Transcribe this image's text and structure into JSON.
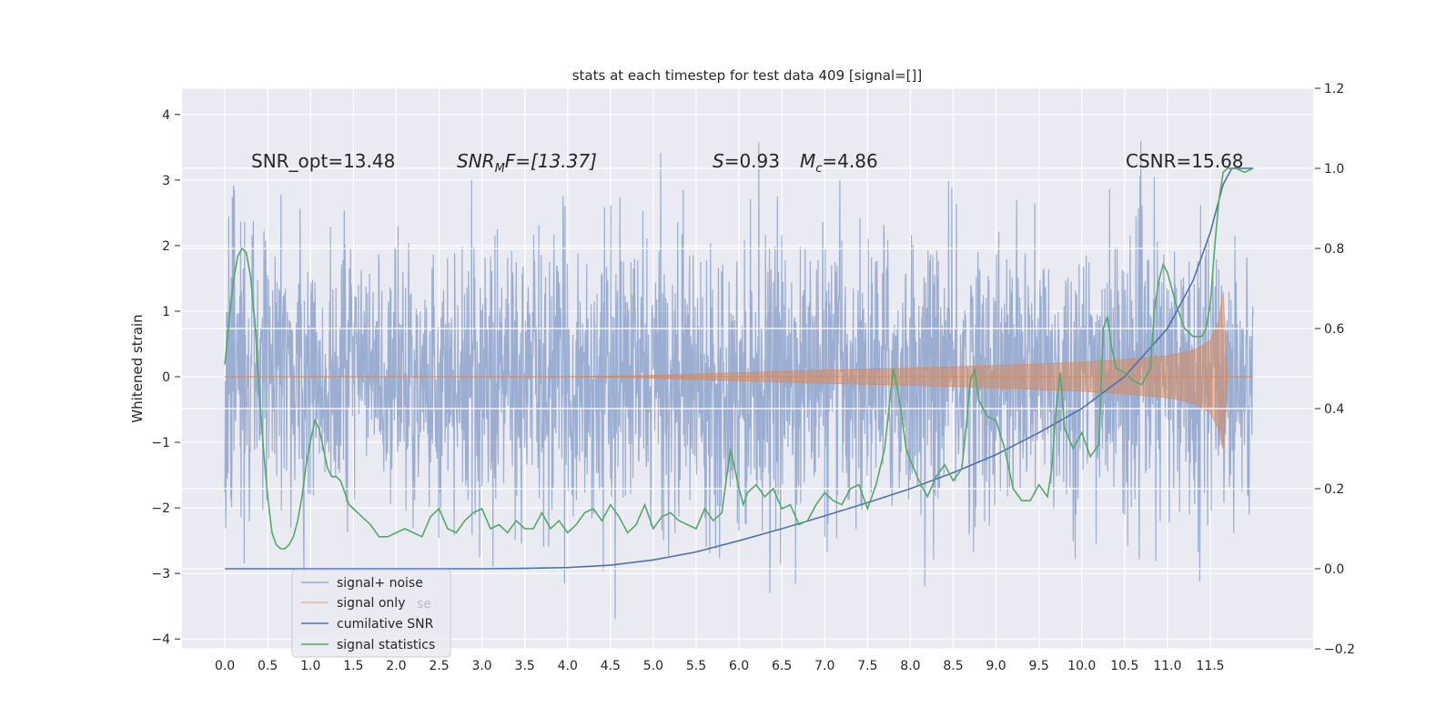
{
  "chart_data": {
    "type": "line",
    "title": "stats at each timestep for test data 409 [signal=[]]",
    "xlabel": "",
    "ylabel": "Whitened strain",
    "xlim": [
      -0.5,
      12.7
    ],
    "ylim": [
      -4.15,
      4.4
    ],
    "y2lim": [
      -0.2,
      1.2
    ],
    "grid": true,
    "x_ticks": [
      "0.0",
      "0.5",
      "1.0",
      "1.5",
      "2.0",
      "2.5",
      "3.0",
      "3.5",
      "4.0",
      "4.5",
      "5.0",
      "5.5",
      "6.0",
      "6.5",
      "7.0",
      "7.5",
      "8.0",
      "8.5",
      "9.0",
      "9.5",
      "10.0",
      "10.5",
      "11.0",
      "11.5"
    ],
    "y_ticks": [
      "4",
      "3",
      "2",
      "1",
      "0",
      "−1",
      "−2",
      "−3",
      "−4"
    ],
    "y2_ticks": [
      "1.2",
      "1.0",
      "0.8",
      "0.6",
      "0.4",
      "0.2",
      "0.0",
      "−0.2"
    ],
    "annotations": {
      "snr_opt": "SNR_opt=13.48",
      "snr_mf_name": "SNR",
      "snr_mf_sub": "M",
      "snr_mf_rest": "F=[13.37]",
      "s_name": "S",
      "s_value": "=0.93",
      "mc_name": "M",
      "mc_sub": "c",
      "mc_value": "=4.86",
      "csnr": "CSNR=15.68"
    },
    "legend": {
      "placement": "lower-left",
      "entries": [
        "signal+ noise",
        "signal only",
        "cumilative SNR",
        "signal statistics"
      ],
      "ghost_text": "se"
    },
    "series": [
      {
        "name": "signal+ noise",
        "axis": "left",
        "color": "#4c72b0",
        "description": "whitened strain noise spanning t=0 to 12.0, amplitude roughly ±2 with peaks to about 3.5 / -3.7",
        "x_range": [
          0.0,
          12.0
        ]
      },
      {
        "name": "signal only",
        "axis": "left",
        "color": "#dd8452",
        "description": "chirp envelope growing from ~0 near t=4 to about ±0.5 at t=11.5, peaking at +1.3 / -1.1 near merger t=11.65",
        "envelope_x": [
          0.0,
          2.0,
          4.0,
          5.0,
          6.0,
          7.0,
          8.0,
          9.0,
          10.0,
          10.5,
          11.0,
          11.3,
          11.5,
          11.6,
          11.65,
          11.7,
          12.0
        ],
        "envelope_upper": [
          0.0,
          0.0,
          0.0,
          0.02,
          0.06,
          0.1,
          0.13,
          0.17,
          0.22,
          0.26,
          0.32,
          0.4,
          0.55,
          0.85,
          1.3,
          0.0,
          0.0
        ],
        "envelope_lower": [
          0.0,
          0.0,
          0.0,
          -0.02,
          -0.06,
          -0.1,
          -0.13,
          -0.17,
          -0.22,
          -0.26,
          -0.32,
          -0.4,
          -0.55,
          -0.8,
          -1.1,
          0.0,
          0.0
        ]
      },
      {
        "name": "cumilative SNR",
        "axis": "right",
        "color": "#4c72b0",
        "x": [
          0.0,
          3.0,
          3.5,
          4.0,
          4.5,
          5.0,
          5.5,
          6.0,
          6.5,
          7.0,
          7.5,
          8.0,
          8.5,
          9.0,
          9.5,
          10.0,
          10.5,
          11.0,
          11.3,
          11.5,
          11.65,
          11.75,
          12.0
        ],
        "values": [
          0.0,
          0.0,
          0.001,
          0.003,
          0.009,
          0.022,
          0.042,
          0.07,
          0.1,
          0.132,
          0.165,
          0.2,
          0.24,
          0.285,
          0.34,
          0.4,
          0.48,
          0.6,
          0.72,
          0.84,
          0.96,
          1.0,
          1.0
        ]
      },
      {
        "name": "signal statistics",
        "axis": "right",
        "color": "#55a868",
        "x": [
          0.0,
          0.05,
          0.1,
          0.15,
          0.2,
          0.25,
          0.3,
          0.35,
          0.4,
          0.45,
          0.5,
          0.55,
          0.6,
          0.65,
          0.7,
          0.75,
          0.8,
          0.85,
          0.9,
          0.95,
          1.0,
          1.05,
          1.1,
          1.15,
          1.2,
          1.25,
          1.3,
          1.35,
          1.4,
          1.45,
          1.5,
          1.6,
          1.7,
          1.8,
          1.9,
          2.0,
          2.1,
          2.2,
          2.3,
          2.4,
          2.5,
          2.6,
          2.7,
          2.8,
          2.9,
          3.0,
          3.1,
          3.2,
          3.3,
          3.4,
          3.5,
          3.6,
          3.7,
          3.8,
          3.9,
          4.0,
          4.1,
          4.2,
          4.3,
          4.4,
          4.5,
          4.6,
          4.7,
          4.8,
          4.9,
          5.0,
          5.1,
          5.2,
          5.3,
          5.4,
          5.5,
          5.6,
          5.7,
          5.8,
          5.9,
          6.0,
          6.05,
          6.1,
          6.2,
          6.3,
          6.4,
          6.5,
          6.6,
          6.7,
          6.8,
          6.9,
          7.0,
          7.1,
          7.2,
          7.3,
          7.4,
          7.5,
          7.6,
          7.7,
          7.75,
          7.8,
          7.85,
          7.9,
          7.95,
          8.0,
          8.1,
          8.2,
          8.3,
          8.4,
          8.5,
          8.6,
          8.65,
          8.7,
          8.75,
          8.8,
          8.9,
          9.0,
          9.1,
          9.2,
          9.3,
          9.4,
          9.5,
          9.6,
          9.65,
          9.7,
          9.75,
          9.8,
          9.9,
          10.0,
          10.1,
          10.2,
          10.25,
          10.3,
          10.35,
          10.4,
          10.5,
          10.6,
          10.7,
          10.8,
          10.85,
          10.9,
          10.95,
          11.0,
          11.1,
          11.2,
          11.3,
          11.4,
          11.45,
          11.5,
          11.55,
          11.6,
          11.65,
          11.7,
          11.8,
          11.9,
          12.0
        ],
        "values": [
          0.51,
          0.62,
          0.72,
          0.78,
          0.8,
          0.79,
          0.73,
          0.62,
          0.45,
          0.3,
          0.18,
          0.09,
          0.06,
          0.05,
          0.05,
          0.06,
          0.08,
          0.12,
          0.18,
          0.26,
          0.32,
          0.37,
          0.35,
          0.3,
          0.25,
          0.23,
          0.23,
          0.22,
          0.19,
          0.16,
          0.15,
          0.13,
          0.11,
          0.08,
          0.08,
          0.09,
          0.1,
          0.09,
          0.08,
          0.13,
          0.15,
          0.1,
          0.09,
          0.12,
          0.14,
          0.15,
          0.1,
          0.11,
          0.09,
          0.12,
          0.1,
          0.1,
          0.14,
          0.1,
          0.12,
          0.09,
          0.11,
          0.14,
          0.15,
          0.12,
          0.16,
          0.13,
          0.09,
          0.11,
          0.16,
          0.1,
          0.13,
          0.14,
          0.12,
          0.11,
          0.1,
          0.15,
          0.12,
          0.14,
          0.3,
          0.2,
          0.16,
          0.19,
          0.21,
          0.18,
          0.2,
          0.15,
          0.16,
          0.11,
          0.12,
          0.16,
          0.19,
          0.17,
          0.16,
          0.2,
          0.21,
          0.15,
          0.21,
          0.3,
          0.4,
          0.5,
          0.45,
          0.38,
          0.3,
          0.27,
          0.22,
          0.18,
          0.23,
          0.26,
          0.22,
          0.25,
          0.35,
          0.47,
          0.5,
          0.42,
          0.38,
          0.37,
          0.3,
          0.2,
          0.17,
          0.17,
          0.21,
          0.18,
          0.25,
          0.4,
          0.49,
          0.35,
          0.3,
          0.34,
          0.28,
          0.31,
          0.6,
          0.63,
          0.55,
          0.5,
          0.49,
          0.47,
          0.46,
          0.5,
          0.65,
          0.72,
          0.76,
          0.74,
          0.66,
          0.6,
          0.58,
          0.58,
          0.6,
          0.66,
          0.8,
          0.92,
          0.99,
          1.0,
          1.0,
          0.99,
          1.0
        ]
      }
    ]
  }
}
